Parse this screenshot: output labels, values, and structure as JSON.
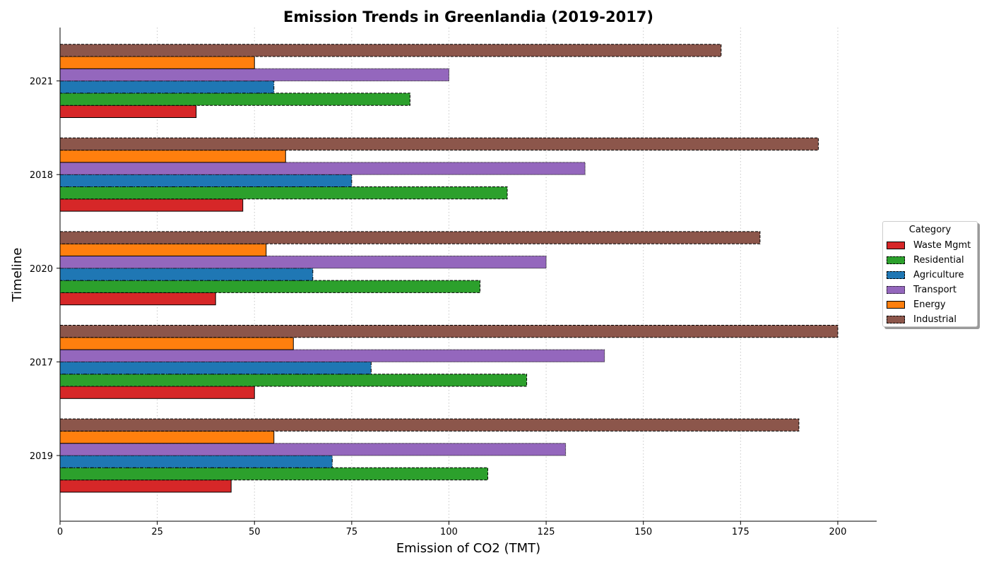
{
  "chart_data": {
    "type": "bar",
    "orientation": "horizontal",
    "title": "Emission Trends in Greenlandia (2019-2017)",
    "xlabel": "Emission of CO2 (TMT)",
    "ylabel": "Timeline",
    "categories": [
      "2019",
      "2017",
      "2020",
      "2018",
      "2021"
    ],
    "xlim": [
      0,
      210
    ],
    "xticks": [
      0,
      25,
      50,
      75,
      100,
      125,
      150,
      175,
      200
    ],
    "grid": "x-dotted",
    "legend_title": "Category",
    "legend_position": "right",
    "series": [
      {
        "name": "Waste Mgmt",
        "color": "#d62728",
        "border": "solid",
        "values": [
          44,
          50,
          40,
          47,
          35
        ]
      },
      {
        "name": "Residential",
        "color": "#2ca02c",
        "border": "dashed",
        "values": [
          110,
          120,
          108,
          115,
          90
        ]
      },
      {
        "name": "Agriculture",
        "color": "#1f77b4",
        "border": "dashdot",
        "values": [
          70,
          80,
          65,
          75,
          55
        ]
      },
      {
        "name": "Transport",
        "color": "#9467bd",
        "border": "dotted",
        "values": [
          130,
          140,
          125,
          135,
          100
        ]
      },
      {
        "name": "Energy",
        "color": "#ff7f0e",
        "border": "solid",
        "values": [
          55,
          60,
          53,
          58,
          50
        ]
      },
      {
        "name": "Industrial",
        "color": "#8c564b",
        "border": "dashed",
        "values": [
          190,
          200,
          180,
          195,
          170
        ]
      }
    ]
  }
}
